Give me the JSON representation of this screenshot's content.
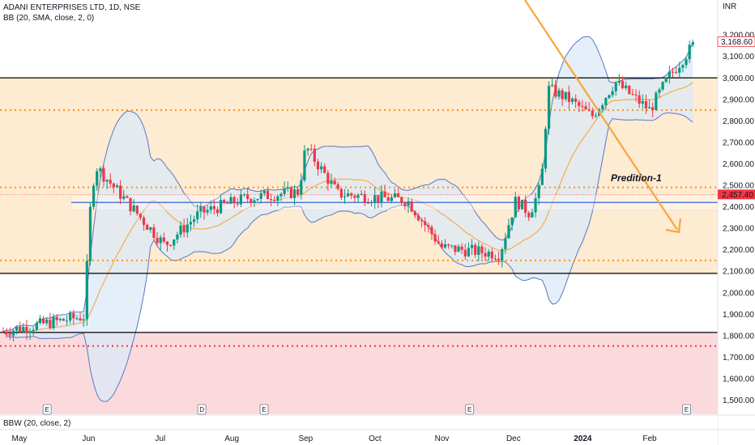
{
  "header": {
    "title": "ADANI ENTERPRISES LTD, 1D, NSE",
    "indicator": "BB (20, SMA, close, 2, 0)",
    "currency": "INR",
    "bottom_indicator": "BBW (20, close, 2)"
  },
  "colors": {
    "up": "#089981",
    "down": "#f23645",
    "bb_band": "#5b78c2",
    "bb_fill": "#dbe9f7",
    "basis": "#f7a231",
    "range_zone": "#fdebd2",
    "red_zone": "#fbdadd",
    "dotted_orange": "#f7931a",
    "dotted_red": "#e53935",
    "blue_line": "#3f5fd1",
    "arrow": "#f9a53b"
  },
  "chart_data": {
    "type": "candlestick",
    "symbol": "ADANI ENTERPRISES LTD",
    "interval": "1D",
    "exchange": "NSE",
    "ylim": [
      1450,
      3300
    ],
    "y_ticks": [
      "1,500.00",
      "1,600.00",
      "1,700.00",
      "1,800.00",
      "1,900.00",
      "2,000.00",
      "2,100.00",
      "2,200.00",
      "2,300.00",
      "2,400.00",
      "2,500.00",
      "2,600.00",
      "2,700.00",
      "2,800.00",
      "2,900.00",
      "3,000.00",
      "3,100.00",
      "3,200.00"
    ],
    "y_tick_values": [
      1500,
      1600,
      1700,
      1800,
      1900,
      2000,
      2100,
      2200,
      2300,
      2400,
      2500,
      2600,
      2700,
      2800,
      2900,
      3000,
      3100,
      3200
    ],
    "x_labels": [
      "May",
      "Jun",
      "Jul",
      "Aug",
      "Sep",
      "Oct",
      "Nov",
      "Dec",
      "2024",
      "Feb"
    ],
    "x_label_days": [
      7,
      37,
      68,
      99,
      131,
      161,
      190,
      221,
      251,
      280
    ],
    "current_price": "3,168.60",
    "other_price_label": "2,457.40",
    "annotation": "Predition-1",
    "events": [
      {
        "day": 19,
        "label": "E"
      },
      {
        "day": 86,
        "label": "D"
      },
      {
        "day": 113,
        "label": "E"
      },
      {
        "day": 202,
        "label": "E"
      },
      {
        "day": 296,
        "label": "E"
      }
    ],
    "levels": {
      "solid_lines": [
        3000,
        2090,
        1815
      ],
      "orange_dotted": [
        2850,
        2490,
        2150
      ],
      "red_dotted": [
        1752
      ],
      "blue_line": 2420,
      "range_zone": [
        2090,
        3000
      ],
      "red_zone": [
        1450,
        1815
      ]
    },
    "key_points": [
      {
        "day": 0,
        "close": 1820
      },
      {
        "day": 35,
        "close": 1890
      },
      {
        "day": 38,
        "close": 2440
      },
      {
        "day": 40,
        "close": 2590
      },
      {
        "day": 70,
        "close": 2220
      },
      {
        "day": 85,
        "close": 2370
      },
      {
        "day": 105,
        "close": 2440
      },
      {
        "day": 128,
        "close": 2470
      },
      {
        "day": 131,
        "close": 2680
      },
      {
        "day": 145,
        "close": 2460
      },
      {
        "day": 175,
        "close": 2430
      },
      {
        "day": 190,
        "close": 2210
      },
      {
        "day": 215,
        "close": 2180
      },
      {
        "day": 222,
        "close": 2430
      },
      {
        "day": 228,
        "close": 2370
      },
      {
        "day": 233,
        "close": 2500
      },
      {
        "day": 236,
        "close": 2950
      },
      {
        "day": 245,
        "close": 2900
      },
      {
        "day": 255,
        "close": 2820
      },
      {
        "day": 265,
        "close": 2980
      },
      {
        "day": 280,
        "close": 2850
      },
      {
        "day": 288,
        "close": 3000
      },
      {
        "day": 300,
        "close": 3168.6
      }
    ]
  }
}
